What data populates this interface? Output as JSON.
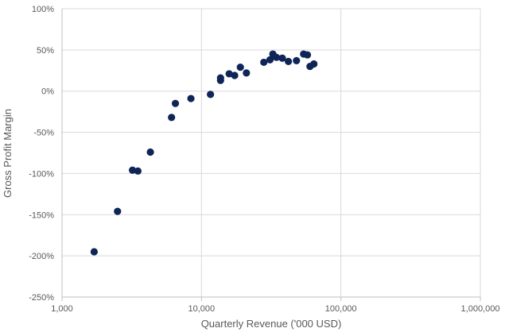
{
  "chart_data": {
    "type": "scatter",
    "title": "",
    "xlabel": "Quarterly Revenue ('000 USD)",
    "ylabel": "Gross Profit Margin",
    "xscale": "log",
    "xlim": [
      1000,
      1000000
    ],
    "ylim": [
      -250,
      100
    ],
    "grid": true,
    "legend": "none",
    "colors": {
      "marker": "#0f2557",
      "grid": "#d9d9d9",
      "axis": "#bfbfbf",
      "text": "#595959"
    },
    "x_ticks": [
      {
        "value": 1000,
        "label": "1,000"
      },
      {
        "value": 10000,
        "label": "10,000"
      },
      {
        "value": 100000,
        "label": "100,000"
      },
      {
        "value": 1000000,
        "label": "1,000,000"
      }
    ],
    "y_ticks": [
      {
        "value": 100,
        "label": "100%"
      },
      {
        "value": 50,
        "label": "50%"
      },
      {
        "value": 0,
        "label": "0%"
      },
      {
        "value": -50,
        "label": "-50%"
      },
      {
        "value": -100,
        "label": "-100%"
      },
      {
        "value": -150,
        "label": "-150%"
      },
      {
        "value": -200,
        "label": "-200%"
      },
      {
        "value": -250,
        "label": "-250%"
      }
    ],
    "points": [
      {
        "x": 1700,
        "y": -195
      },
      {
        "x": 2500,
        "y": -146
      },
      {
        "x": 3200,
        "y": -96
      },
      {
        "x": 3500,
        "y": -97
      },
      {
        "x": 4300,
        "y": -74
      },
      {
        "x": 6100,
        "y": -32
      },
      {
        "x": 6500,
        "y": -15
      },
      {
        "x": 8400,
        "y": -9
      },
      {
        "x": 11600,
        "y": -4
      },
      {
        "x": 13700,
        "y": 13
      },
      {
        "x": 13700,
        "y": 16
      },
      {
        "x": 15800,
        "y": 21
      },
      {
        "x": 17300,
        "y": 19
      },
      {
        "x": 19000,
        "y": 29
      },
      {
        "x": 21000,
        "y": 22
      },
      {
        "x": 28000,
        "y": 35
      },
      {
        "x": 31000,
        "y": 38
      },
      {
        "x": 32500,
        "y": 45
      },
      {
        "x": 34500,
        "y": 41
      },
      {
        "x": 38000,
        "y": 40
      },
      {
        "x": 42000,
        "y": 36
      },
      {
        "x": 48000,
        "y": 37
      },
      {
        "x": 54000,
        "y": 45
      },
      {
        "x": 57500,
        "y": 44
      },
      {
        "x": 60000,
        "y": 30
      },
      {
        "x": 64000,
        "y": 33
      }
    ]
  }
}
